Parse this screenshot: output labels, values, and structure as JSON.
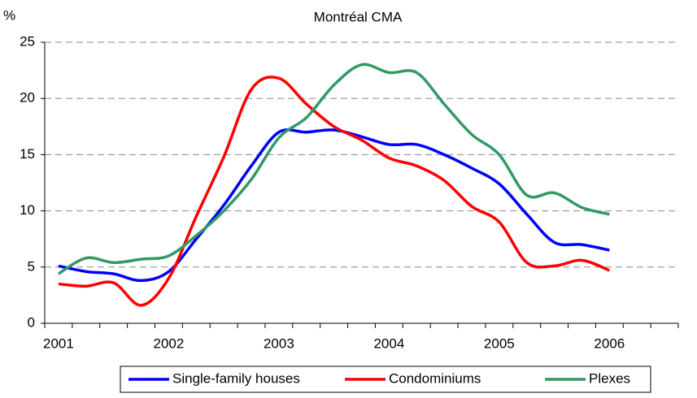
{
  "chart_data": {
    "type": "line",
    "subtitle": "Montréal CMA",
    "y_label": "%",
    "categories": [
      "2001",
      null,
      null,
      null,
      "2002",
      null,
      null,
      null,
      "2003",
      null,
      null,
      null,
      "2004",
      null,
      null,
      null,
      "2005",
      null,
      null,
      null,
      "2006",
      null,
      null
    ],
    "series": [
      {
        "name": "Single-family houses",
        "color": "#0000ff",
        "values": [
          5.1,
          4.6,
          4.4,
          3.8,
          4.6,
          7.5,
          10.5,
          14.0,
          17.0,
          17.0,
          17.2,
          16.6,
          15.9,
          15.9,
          15.0,
          13.8,
          12.4,
          9.7,
          7.2,
          7.0,
          6.5,
          null,
          null
        ]
      },
      {
        "name": "Condominiums",
        "color": "#ff0000",
        "values": [
          3.5,
          3.3,
          3.6,
          1.6,
          4.0,
          9.5,
          14.8,
          20.8,
          21.8,
          19.5,
          17.5,
          16.3,
          14.7,
          14.0,
          12.7,
          10.4,
          9.0,
          5.4,
          5.1,
          5.6,
          4.7,
          null,
          null
        ]
      },
      {
        "name": "Plexes",
        "color": "#339966",
        "values": [
          4.4,
          5.8,
          5.4,
          5.7,
          6.0,
          7.8,
          10.0,
          12.8,
          16.5,
          18.3,
          21.2,
          23.0,
          22.3,
          22.3,
          19.5,
          16.8,
          15.0,
          11.4,
          11.6,
          10.3,
          9.7,
          null,
          null
        ]
      }
    ],
    "ylim": [
      0,
      25
    ],
    "yticks": [
      0,
      5,
      10,
      15,
      20,
      25
    ],
    "grid": true,
    "legend": "bottom"
  }
}
